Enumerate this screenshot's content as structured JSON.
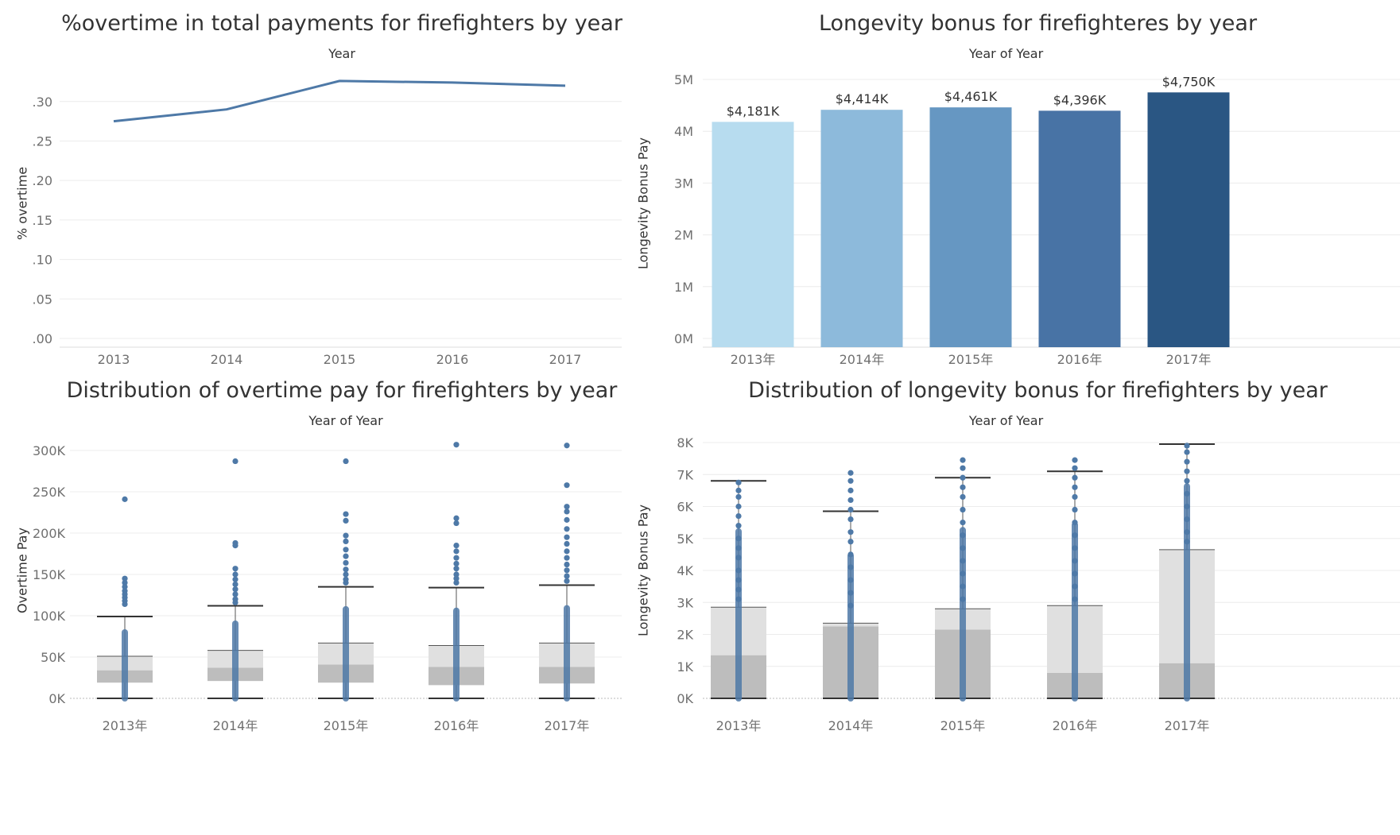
{
  "chart_data": [
    {
      "id": "overtime_pct",
      "type": "line",
      "title": "%overtime in total payments for firefighters by year",
      "xlabel": "Year",
      "ylabel": "% overtime",
      "categories": [
        "2013",
        "2014",
        "2015",
        "2016",
        "2017"
      ],
      "series": [
        {
          "values": [
            0.275,
            0.29,
            0.326,
            0.324,
            0.32
          ]
        }
      ],
      "ylim": [
        0,
        0.34
      ],
      "yticks": [
        0,
        0.05,
        0.1,
        0.15,
        0.2,
        0.25,
        0.3
      ],
      "ytick_labels": [
        ".00",
        ".05",
        ".10",
        ".15",
        ".20",
        ".25",
        ".30"
      ],
      "line_color": "#4e79a7",
      "grid": true
    },
    {
      "id": "longevity_bar",
      "type": "bar",
      "title": "Longevity bonus for firefighteres by year",
      "xlabel": "Year of Year",
      "ylabel": "Longevity Bonus Pay",
      "categories": [
        "2013年",
        "2014年",
        "2015年",
        "2016年",
        "2017年"
      ],
      "values": [
        4181,
        4414,
        4461,
        4396,
        4750
      ],
      "value_labels": [
        "$4,181K",
        "$4,414K",
        "$4,461K",
        "$4,396K",
        "$4,750K"
      ],
      "colors": [
        "#b7dcef",
        "#8dbadb",
        "#6697c2",
        "#4873a5",
        "#2a5683"
      ],
      "ylim": [
        0,
        5200
      ],
      "yticks": [
        0,
        1000,
        2000,
        3000,
        4000,
        5000
      ],
      "ytick_labels": [
        "0M",
        "1M",
        "2M",
        "3M",
        "4M",
        "5M"
      ],
      "grid": true
    },
    {
      "id": "overtime_box",
      "type": "box",
      "title": "Distribution of overtime pay for firefighters by year",
      "xlabel": "Year of Year",
      "ylabel": "Overtime Pay",
      "categories": [
        "2013年",
        "2014年",
        "2015年",
        "2016年",
        "2017年"
      ],
      "boxes": [
        {
          "min": 0,
          "q1": 19000,
          "median": 34000,
          "q3": 51000,
          "whisker_high": 99000,
          "points": [
            241000,
            145000,
            140000,
            135000,
            130000,
            126000,
            122000,
            118000,
            114000
          ]
        },
        {
          "min": 0,
          "q1": 21000,
          "median": 37000,
          "q3": 58000,
          "whisker_high": 112000,
          "points": [
            287000,
            188000,
            185000,
            157000,
            150000,
            144000,
            138000,
            132000,
            126000,
            120000,
            116000
          ]
        },
        {
          "min": 0,
          "q1": 19000,
          "median": 41000,
          "q3": 67000,
          "whisker_high": 135000,
          "points": [
            287000,
            223000,
            215000,
            197000,
            190000,
            180000,
            172000,
            164000,
            156000,
            150000,
            144000,
            140000
          ]
        },
        {
          "min": 0,
          "q1": 16000,
          "median": 38000,
          "q3": 64000,
          "whisker_high": 134000,
          "points": [
            307000,
            218000,
            212000,
            185000,
            178000,
            170000,
            163000,
            157000,
            150000,
            145000,
            140000
          ]
        },
        {
          "min": 0,
          "q1": 18000,
          "median": 38000,
          "q3": 67000,
          "whisker_high": 137000,
          "points": [
            306000,
            258000,
            232000,
            226000,
            216000,
            205000,
            195000,
            187000,
            178000,
            170000,
            162000,
            155000,
            148000,
            142000
          ]
        }
      ],
      "ylim": [
        -10000,
        320000
      ],
      "yticks": [
        0,
        50000,
        100000,
        150000,
        200000,
        250000,
        300000
      ],
      "ytick_labels": [
        "0K",
        "50K",
        "100K",
        "150K",
        "200K",
        "250K",
        "300K"
      ],
      "point_color": "#4e79a7",
      "grid": true
    },
    {
      "id": "longevity_box",
      "type": "box",
      "title": "Distribution of longevity bonus for firefighters by year",
      "xlabel": "Year of Year",
      "ylabel": "Longevity Bonus Pay",
      "categories": [
        "2013年",
        "2014年",
        "2015年",
        "2016年",
        "2017年"
      ],
      "boxes": [
        {
          "min": 0,
          "q1": 0,
          "median": 1350,
          "q3": 2850,
          "whisker_high": 6800,
          "points": [
            6750,
            6500,
            6300,
            6000,
            5700,
            5400,
            5000,
            4700,
            4400,
            4000,
            3700,
            3400,
            3100
          ]
        },
        {
          "min": 0,
          "q1": 0,
          "median": 2250,
          "q3": 2350,
          "whisker_high": 5850,
          "points": [
            7050,
            6800,
            6500,
            6200,
            5900,
            5600,
            5200,
            4900,
            4500,
            4100,
            3700,
            3300,
            2900
          ]
        },
        {
          "min": 0,
          "q1": 0,
          "median": 2150,
          "q3": 2800,
          "whisker_high": 6900,
          "points": [
            7450,
            7200,
            6900,
            6600,
            6300,
            5900,
            5500,
            5100,
            4700,
            4300,
            3900,
            3500,
            3100
          ]
        },
        {
          "min": 0,
          "q1": 0,
          "median": 800,
          "q3": 2900,
          "whisker_high": 7100,
          "points": [
            7450,
            7200,
            6900,
            6600,
            6300,
            5900,
            5500,
            5100,
            4700,
            4300,
            3900,
            3500,
            3100
          ]
        },
        {
          "min": 0,
          "q1": 0,
          "median": 1100,
          "q3": 4650,
          "whisker_high": 7950,
          "points": [
            7900,
            7700,
            7400,
            7100,
            6800,
            6400,
            6000,
            5600,
            5200,
            4900
          ]
        }
      ],
      "ylim": [
        -200,
        8300
      ],
      "yticks": [
        0,
        1000,
        2000,
        3000,
        4000,
        5000,
        6000,
        7000,
        8000
      ],
      "ytick_labels": [
        "0K",
        "1K",
        "2K",
        "3K",
        "4K",
        "5K",
        "6K",
        "7K",
        "8K"
      ],
      "point_color": "#4e79a7",
      "grid": true
    }
  ]
}
